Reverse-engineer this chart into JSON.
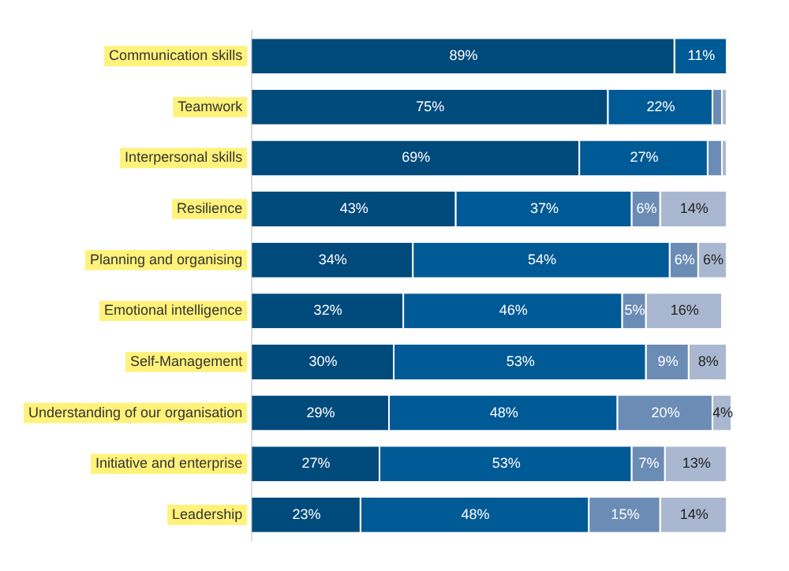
{
  "chart_data": {
    "type": "bar",
    "orientation": "horizontal",
    "stacked": true,
    "categories": [
      "Communication skills",
      "Teamwork",
      "Interpersonal skills",
      "Resilience",
      "Planning and organising",
      "Emotional intelligence",
      "Self-Management",
      "Understanding of our organisation",
      "Initiative and enterprise",
      "Leadership"
    ],
    "series": [
      {
        "color": "#004a7c",
        "values": [
          89,
          75,
          69,
          43,
          34,
          32,
          30,
          29,
          27,
          23
        ],
        "value_labels": [
          "89%",
          "75%",
          "69%",
          "43%",
          "34%",
          "32%",
          "30%",
          "29%",
          "27%",
          "23%"
        ]
      },
      {
        "color": "#005a96",
        "values": [
          11,
          22,
          27,
          37,
          54,
          46,
          53,
          48,
          53,
          48
        ],
        "value_labels": [
          "11%",
          "22%",
          "27%",
          "37%",
          "54%",
          "46%",
          "53%",
          "48%",
          "53%",
          "48%"
        ]
      },
      {
        "color": "#6b8cb5",
        "values": [
          0,
          2,
          3,
          6,
          6,
          5,
          9,
          20,
          7,
          15
        ],
        "value_labels": [
          null,
          null,
          null,
          "6%",
          "6%",
          "5%",
          "9%",
          "20%",
          "7%",
          "15%"
        ]
      },
      {
        "color": "#a9b8d0",
        "values": [
          0,
          1,
          1,
          14,
          6,
          16,
          8,
          4,
          13,
          14
        ],
        "value_labels": [
          null,
          null,
          null,
          "14%",
          "6%",
          "16%",
          "8%",
          "4%",
          "13%",
          "14%"
        ]
      }
    ],
    "xlim": [
      0,
      101
    ],
    "tick_labels": "y",
    "legend": false
  }
}
